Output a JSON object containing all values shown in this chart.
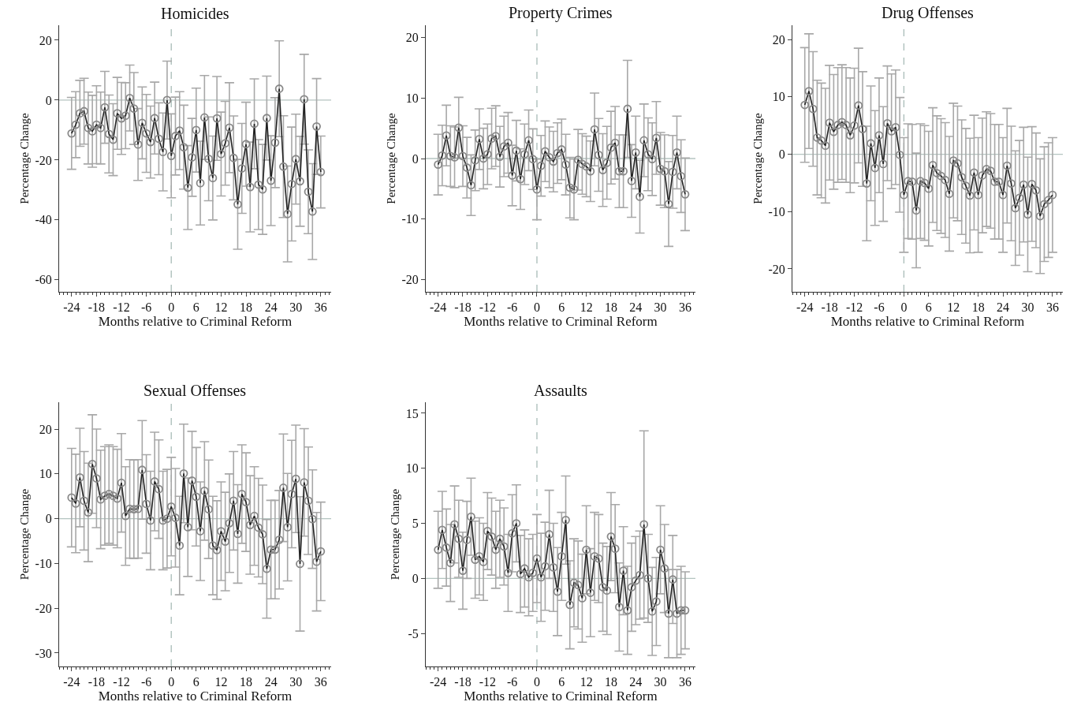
{
  "chart_data": [
    {
      "type": "line",
      "title": "Homicides",
      "xlabel": "Months relative to Criminal Reform",
      "ylabel": "Percentage Change",
      "marker": "circle",
      "xlim": [
        -27,
        38.5
      ],
      "xticks": [
        -24,
        -18,
        -12,
        -6,
        0,
        6,
        12,
        18,
        24,
        30,
        36
      ],
      "ylim": [
        -64,
        25
      ],
      "yticks": [
        -60,
        -40,
        -20,
        0,
        20
      ],
      "x": [
        -24,
        -23,
        -22,
        -21,
        -20,
        -19,
        -18,
        -17,
        -16,
        -15,
        -14,
        -13,
        -12,
        -11,
        -10,
        -9,
        -8,
        -7,
        -6,
        -5,
        -4,
        -3,
        -2,
        -1,
        0,
        1,
        2,
        3,
        4,
        5,
        6,
        7,
        8,
        9,
        10,
        11,
        12,
        13,
        14,
        15,
        16,
        17,
        18,
        19,
        20,
        21,
        22,
        23,
        24,
        25,
        26,
        27,
        28,
        29,
        30,
        31,
        32,
        33,
        34,
        35,
        36
      ],
      "series": [
        {
          "color": "#222222",
          "values": [
            -11.1,
            -8.2,
            -4.4,
            -3.7,
            -9.3,
            -10.4,
            -8.2,
            -9.3,
            -2.4,
            -11.3,
            -13.2,
            -4.4,
            -6.1,
            -5.2,
            0.7,
            -2.8,
            -14.8,
            -7.6,
            -11.1,
            -14,
            -6,
            -12.9,
            -17.3,
            0,
            -18.6,
            -12,
            -10.2,
            -15.7,
            -29.2,
            -19.1,
            -10,
            -27.7,
            -5.8,
            -19.6,
            -26,
            -6.1,
            -18,
            -14.4,
            -9.2,
            -19.3,
            -34.8,
            -22.8,
            -14.7,
            -29,
            -7.9,
            -28.2,
            -29.8,
            -6,
            -26.9,
            -14.2,
            3.8,
            -22.2,
            -38,
            -28,
            -19.7,
            -27.1,
            0.3,
            -30.6,
            -37.2,
            -8.8,
            -24
          ],
          "errors": [
            12,
            11,
            11,
            11,
            12,
            12,
            13,
            12,
            12,
            13,
            12,
            12,
            12,
            11,
            11,
            12,
            12,
            12,
            13,
            12,
            12,
            12,
            13,
            13,
            14,
            13,
            13,
            14,
            14,
            13,
            14,
            14,
            14,
            14,
            14,
            14,
            14,
            14,
            15,
            14,
            15,
            15,
            14,
            15,
            15,
            15,
            15,
            14,
            15,
            15,
            16,
            17,
            16,
            19,
            15,
            15,
            15,
            14,
            16,
            16,
            12
          ]
        }
      ],
      "ref_lines": [
        {
          "axis": "y",
          "value": 0,
          "color": "#b4c4c0",
          "line_style": "solid"
        },
        {
          "axis": "x",
          "value": 0,
          "color": "#a8bcb8",
          "line_style": "dashed"
        }
      ]
    },
    {
      "type": "line",
      "title": "Property Crimes",
      "xlabel": "Months relative to Criminal Reform",
      "ylabel": "Percentage Change",
      "marker": "circle",
      "xlim": [
        -27,
        38.5
      ],
      "xticks": [
        -24,
        -18,
        -12,
        -6,
        0,
        6,
        12,
        18,
        24,
        30,
        36
      ],
      "ylim": [
        -22,
        22
      ],
      "yticks": [
        -20,
        -10,
        0,
        10,
        20
      ],
      "x": [
        -24,
        -23,
        -22,
        -21,
        -20,
        -19,
        -18,
        -17,
        -16,
        -15,
        -14,
        -13,
        -12,
        -11,
        -10,
        -9,
        -8,
        -7,
        -6,
        -5,
        -4,
        -3,
        -2,
        -1,
        0,
        1,
        2,
        3,
        4,
        5,
        6,
        7,
        8,
        9,
        10,
        11,
        12,
        13,
        14,
        15,
        16,
        17,
        18,
        19,
        20,
        21,
        22,
        23,
        24,
        25,
        26,
        27,
        28,
        29,
        30,
        31,
        32,
        33,
        34,
        35,
        36
      ],
      "series": [
        {
          "color": "#222222",
          "values": [
            -1.0,
            0.5,
            3.8,
            0.4,
            0.2,
            5.1,
            0.4,
            -1.5,
            -4.4,
            -0.3,
            3.2,
            0,
            0.7,
            3.3,
            3.7,
            0.3,
            2.0,
            2.6,
            -2.8,
            1.3,
            -3.4,
            0.7,
            3.0,
            -0.1,
            -5.1,
            -1.2,
            1.2,
            0.2,
            -0.5,
            0.9,
            1.5,
            -1.0,
            -4.8,
            -5.1,
            -0.2,
            -0.9,
            -1.3,
            -2.1,
            4.8,
            0.6,
            -1.9,
            -0.7,
            1.8,
            2.6,
            -2.1,
            -2.1,
            8.2,
            -3.7,
            1.0,
            -6.3,
            3.0,
            0.7,
            -0.1,
            3.4,
            -1.7,
            -2.1,
            -7.5,
            -2.2,
            1.0,
            -2.9,
            -5.9
          ],
          "errors": [
            5,
            5,
            5,
            5,
            5,
            5,
            5,
            5,
            5,
            5,
            5,
            5,
            5,
            5,
            5,
            5,
            5,
            5,
            5,
            5,
            5,
            5,
            5,
            5,
            5,
            5,
            5,
            5,
            5,
            5,
            5,
            5,
            5,
            5,
            5,
            5,
            5,
            5,
            6,
            6,
            6,
            6,
            6,
            6,
            6,
            6,
            8,
            6,
            6,
            6,
            6,
            6,
            6,
            6,
            6,
            6,
            7,
            6,
            6,
            6,
            6
          ]
        }
      ],
      "ref_lines": [
        {
          "axis": "y",
          "value": 0,
          "color": "#b4c4c0",
          "line_style": "solid"
        },
        {
          "axis": "x",
          "value": 0,
          "color": "#a8bcb8",
          "line_style": "dashed"
        }
      ]
    },
    {
      "type": "line",
      "title": "Drug Offenses",
      "xlabel": "Months relative to Criminal Reform",
      "ylabel": "Percentage Change",
      "marker": "circle",
      "xlim": [
        -27,
        38.5
      ],
      "xticks": [
        -24,
        -18,
        -12,
        -6,
        0,
        6,
        12,
        18,
        24,
        30,
        36
      ],
      "ylim": [
        -24,
        22.5
      ],
      "yticks": [
        -20,
        -10,
        0,
        10,
        20
      ],
      "x": [
        -24,
        -23,
        -22,
        -21,
        -20,
        -19,
        -18,
        -17,
        -16,
        -15,
        -14,
        -13,
        -12,
        -11,
        -10,
        -9,
        -8,
        -7,
        -6,
        -5,
        -4,
        -3,
        -2,
        -1,
        0,
        1,
        2,
        3,
        4,
        5,
        6,
        7,
        8,
        9,
        10,
        11,
        12,
        13,
        14,
        15,
        16,
        17,
        18,
        19,
        20,
        21,
        22,
        23,
        24,
        25,
        26,
        27,
        28,
        29,
        30,
        31,
        32,
        33,
        34,
        35,
        36
      ],
      "series": [
        {
          "color": "#222222",
          "values": [
            8.6,
            11.0,
            7.9,
            2.9,
            2.4,
            1.5,
            5.5,
            3.9,
            5.1,
            5.6,
            5.1,
            3.3,
            5.0,
            8.5,
            4.4,
            -5.1,
            1.9,
            -2.4,
            3.3,
            -1.7,
            5.4,
            4.0,
            4.7,
            -0.1,
            -7.1,
            -4.7,
            -4.8,
            -9.8,
            -4.7,
            -5.0,
            -6.0,
            -1.9,
            -3.3,
            -3.8,
            -4.5,
            -6.9,
            -1.1,
            -1.6,
            -4.0,
            -5.5,
            -7.2,
            -3.2,
            -7.1,
            -3.7,
            -2.6,
            -2.9,
            -4.8,
            -4.8,
            -7.1,
            -2.0,
            -5.1,
            -9.4,
            -7.6,
            -5.3,
            -10.5,
            -5.2,
            -6.3,
            -10.8,
            -8.7,
            -8.0,
            -7.1
          ],
          "errors": [
            10,
            10,
            10,
            10,
            10,
            10,
            10,
            10,
            10,
            10,
            10,
            10,
            10,
            10,
            10,
            10,
            10,
            10,
            10,
            10,
            10,
            10,
            10,
            10,
            10,
            10,
            10,
            10,
            10,
            10,
            10,
            10,
            10,
            10,
            10,
            10,
            10,
            10,
            10,
            10,
            10,
            10,
            10,
            10,
            10,
            10,
            10,
            10,
            10,
            10,
            10,
            10,
            10,
            10,
            10,
            10,
            10,
            10,
            10,
            10,
            10
          ]
        }
      ],
      "ref_lines": [
        {
          "axis": "y",
          "value": 0,
          "color": "#b4c4c0",
          "line_style": "solid"
        },
        {
          "axis": "x",
          "value": 0,
          "color": "#a8bcb8",
          "line_style": "dashed"
        }
      ]
    },
    {
      "type": "line",
      "title": "Sexual Offenses",
      "xlabel": "Months relative to Criminal Reform",
      "ylabel": "Percentage Change",
      "marker": "circle",
      "xlim": [
        -27,
        38.5
      ],
      "xticks": [
        -24,
        -18,
        -12,
        -6,
        0,
        6,
        12,
        18,
        24,
        30,
        36
      ],
      "ylim": [
        -33,
        26
      ],
      "yticks": [
        -30,
        -20,
        -10,
        0,
        10,
        20
      ],
      "x": [
        -24,
        -23,
        -22,
        -21,
        -20,
        -19,
        -18,
        -17,
        -16,
        -15,
        -14,
        -13,
        -12,
        -11,
        -10,
        -9,
        -8,
        -7,
        -6,
        -5,
        -4,
        -3,
        -2,
        -1,
        0,
        1,
        2,
        3,
        4,
        5,
        6,
        7,
        8,
        9,
        10,
        11,
        12,
        13,
        14,
        15,
        16,
        17,
        18,
        19,
        20,
        21,
        22,
        23,
        24,
        25,
        26,
        27,
        28,
        29,
        30,
        31,
        32,
        33,
        34,
        35,
        36
      ],
      "series": [
        {
          "color": "#222222",
          "values": [
            4.7,
            3.4,
            9.2,
            4.0,
            1.4,
            12.2,
            9.0,
            4.3,
            5.1,
            5.5,
            5.1,
            4.5,
            8.0,
            0.6,
            2.2,
            2.1,
            2.2,
            10.9,
            3.3,
            -0.4,
            8.3,
            6.6,
            -0.4,
            0,
            2.7,
            0.2,
            -6.0,
            10.1,
            -1.9,
            8.5,
            4.9,
            -2.8,
            6.2,
            2.1,
            -6.0,
            -7.0,
            -2.8,
            -5.1,
            -1.0,
            4.0,
            -3.4,
            5.5,
            3.7,
            -1.4,
            0.6,
            -2.0,
            -3.5,
            -11.2,
            -6.9,
            -6.9,
            -4.7,
            6.9,
            -1.9,
            5.5,
            8.9,
            -10.1,
            8.1,
            4.0,
            -0.1,
            -9.6,
            -7.3
          ],
          "errors": [
            11,
            11,
            11,
            11,
            11,
            11,
            11,
            11,
            11,
            11,
            11,
            11,
            11,
            11,
            11,
            11,
            11,
            11,
            11,
            11,
            11,
            11,
            11,
            11,
            11,
            11,
            11,
            11,
            11,
            11,
            11,
            11,
            11,
            11,
            11,
            11,
            11,
            11,
            11,
            11,
            11,
            11,
            11,
            11,
            11,
            11,
            11,
            11,
            11,
            11,
            11,
            12,
            12,
            12,
            12,
            15,
            12,
            12,
            11,
            11,
            11
          ]
        }
      ],
      "ref_lines": [
        {
          "axis": "y",
          "value": 0,
          "color": "#b4c4c0",
          "line_style": "solid"
        },
        {
          "axis": "x",
          "value": 0,
          "color": "#a8bcb8",
          "line_style": "dashed"
        }
      ]
    },
    {
      "type": "line",
      "title": "Assaults",
      "xlabel": "Months relative to Criminal Reform",
      "ylabel": "Percentage Change",
      "marker": "circle",
      "xlim": [
        -27,
        38.5
      ],
      "xticks": [
        -24,
        -18,
        -12,
        -6,
        0,
        6,
        12,
        18,
        24,
        30,
        36
      ],
      "ylim": [
        -8,
        16
      ],
      "yticks": [
        -5,
        0,
        5,
        10,
        15
      ],
      "x": [
        -24,
        -23,
        -22,
        -21,
        -20,
        -19,
        -18,
        -17,
        -16,
        -15,
        -14,
        -13,
        -12,
        -11,
        -10,
        -9,
        -8,
        -7,
        -6,
        -5,
        -4,
        -3,
        -2,
        -1,
        0,
        1,
        2,
        3,
        4,
        5,
        6,
        7,
        8,
        9,
        10,
        11,
        12,
        13,
        14,
        15,
        16,
        17,
        18,
        19,
        20,
        21,
        22,
        23,
        24,
        25,
        26,
        27,
        28,
        29,
        30,
        31,
        32,
        33,
        34,
        35,
        36
      ],
      "series": [
        {
          "color": "#222222",
          "values": [
            2.6,
            4.4,
            2.8,
            1.4,
            4.9,
            3.6,
            0.7,
            3.5,
            5.6,
            1.7,
            2.0,
            1.5,
            4.3,
            3.8,
            2.6,
            3.6,
            2.9,
            0.5,
            4.1,
            5.0,
            0.4,
            0.9,
            0.1,
            0.5,
            1.8,
            0.1,
            1.1,
            4.0,
            1.0,
            -1.2,
            2.0,
            5.3,
            -2.4,
            -0.4,
            -0.6,
            -1.8,
            2.6,
            -1.3,
            2.0,
            1.8,
            -0.8,
            -1.1,
            3.8,
            2.7,
            -2.6,
            0.7,
            -2.9,
            -0.8,
            -0.2,
            0.3,
            4.9,
            0,
            -3.0,
            -2.1,
            2.6,
            0.9,
            -3.2,
            -0.1,
            -3.2,
            -2.9,
            -2.9
          ],
          "errors": [
            3.5,
            3.5,
            3.5,
            3.5,
            3.5,
            3.5,
            3.5,
            3.5,
            3.5,
            3.5,
            3.5,
            3.5,
            3.5,
            3.5,
            3.5,
            3.5,
            3.5,
            3.5,
            3.5,
            3.5,
            3.5,
            3.5,
            3.5,
            3.5,
            4,
            4,
            4,
            4,
            4,
            4,
            4,
            4,
            4,
            4,
            4,
            4,
            4,
            4,
            4,
            4,
            4,
            4,
            4,
            4,
            4,
            4,
            4,
            4,
            4,
            4,
            8.5,
            4,
            4,
            4,
            4,
            4,
            4,
            4,
            4,
            4,
            3.5
          ]
        }
      ],
      "ref_lines": [
        {
          "axis": "y",
          "value": 0,
          "color": "#b4c4c0",
          "line_style": "solid"
        },
        {
          "axis": "x",
          "value": 0,
          "color": "#a8bcb8",
          "line_style": "dashed"
        }
      ]
    }
  ]
}
